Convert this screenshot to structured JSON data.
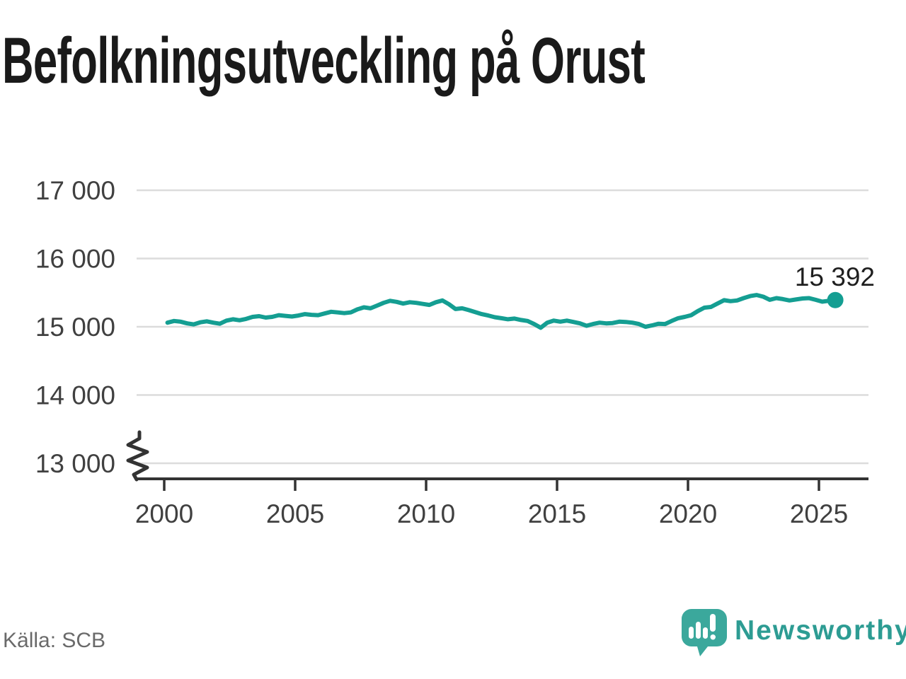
{
  "title": "Befolkningsutveckling på Orust",
  "source": "Källa: SCB",
  "brand": {
    "name": "Newsworthy"
  },
  "annotation": {
    "label": "15 392"
  },
  "colors": {
    "line": "#149e92",
    "grid": "#dcdcdc",
    "axis": "#333333",
    "tick-text": "#404040",
    "title": "#1a1a1a",
    "source": "#6a6a6a",
    "brand": "#2d9c93",
    "badge": "#3ba89c"
  },
  "chart_data": {
    "type": "line",
    "title": "Befolkningsutveckling på Orust",
    "series_name": "Folkmängd Orust",
    "xlabel": "",
    "ylabel": "",
    "grid": "horizontal",
    "legend": "none",
    "y_axis_break": true,
    "xlim": [
      1999.2,
      2026.9
    ],
    "ylim": [
      13000,
      17000
    ],
    "x_ticks": [
      {
        "value": 2000,
        "label": "2000"
      },
      {
        "value": 2005,
        "label": "2005"
      },
      {
        "value": 2010,
        "label": "2010"
      },
      {
        "value": 2015,
        "label": "2015"
      },
      {
        "value": 2020,
        "label": "2020"
      },
      {
        "value": 2025,
        "label": "2025"
      }
    ],
    "y_ticks": [
      {
        "value": 17000,
        "label": "17 000"
      },
      {
        "value": 16000,
        "label": "16 000"
      },
      {
        "value": 15000,
        "label": "15 000"
      },
      {
        "value": 14000,
        "label": "14 000"
      },
      {
        "value": 13000,
        "label": "13 000"
      }
    ],
    "x_start": 2000.125,
    "x_step": 0.25,
    "last_value": 15392,
    "last_point_label": "15 392",
    "values": [
      15060,
      15085,
      15075,
      15050,
      15035,
      15065,
      15080,
      15060,
      15045,
      15090,
      15110,
      15095,
      15115,
      15145,
      15155,
      15135,
      15145,
      15170,
      15160,
      15150,
      15165,
      15185,
      15175,
      15170,
      15195,
      15220,
      15210,
      15200,
      15210,
      15255,
      15285,
      15270,
      15310,
      15350,
      15380,
      15365,
      15340,
      15360,
      15350,
      15335,
      15320,
      15360,
      15385,
      15330,
      15260,
      15270,
      15245,
      15215,
      15185,
      15165,
      15140,
      15125,
      15110,
      15120,
      15100,
      15085,
      15040,
      14985,
      15060,
      15090,
      15075,
      15090,
      15070,
      15050,
      15015,
      15040,
      15060,
      15050,
      15055,
      15075,
      15070,
      15060,
      15040,
      15000,
      15020,
      15045,
      15040,
      15085,
      15125,
      15145,
      15170,
      15230,
      15280,
      15290,
      15340,
      15390,
      15375,
      15385,
      15420,
      15450,
      15465,
      15440,
      15395,
      15420,
      15405,
      15385,
      15400,
      15415,
      15420,
      15395,
      15368,
      15380,
      15392
    ]
  }
}
